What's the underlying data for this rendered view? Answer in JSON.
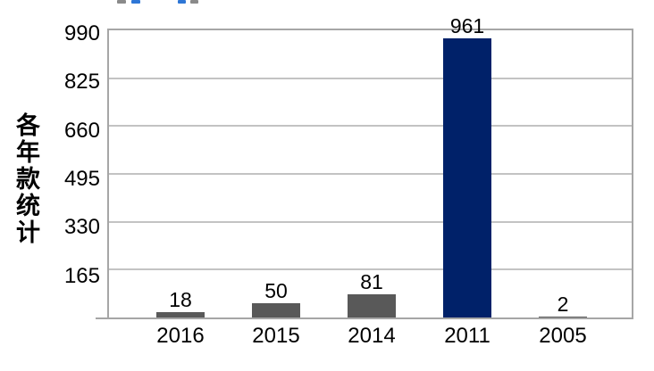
{
  "page": {
    "background_color": "#ffffff",
    "text_color": "#000000"
  },
  "clipped_top_text_fragments": [
    {
      "x": 131,
      "width": 10,
      "color": "#8a8a8a"
    },
    {
      "x": 147,
      "width": 10,
      "color": "#2e76d6"
    },
    {
      "x": 199,
      "width": 9,
      "color": "#2e76d6"
    },
    {
      "x": 213,
      "width": 9,
      "color": "#8a8a8a"
    }
  ],
  "chart_data": {
    "type": "bar",
    "title": "",
    "ylabel": "各年款统计",
    "xlabel": "",
    "categories": [
      "2016",
      "2015",
      "2014",
      "2011",
      "2005"
    ],
    "values": [
      18,
      50,
      81,
      961,
      2
    ],
    "value_labels": [
      "18",
      "50",
      "81",
      "961",
      "2"
    ],
    "yticks": [
      990,
      825,
      660,
      495,
      330,
      165
    ],
    "ylim": [
      0,
      990
    ],
    "grid": "horizontal",
    "legend_position": "none",
    "bar_colors": [
      "#595959",
      "#595959",
      "#595959",
      "#002169",
      "#595959"
    ],
    "gridline_color": "#c3c3c3",
    "plot_border_color": "#a6a6a6",
    "axis_text_color": "#000000"
  }
}
